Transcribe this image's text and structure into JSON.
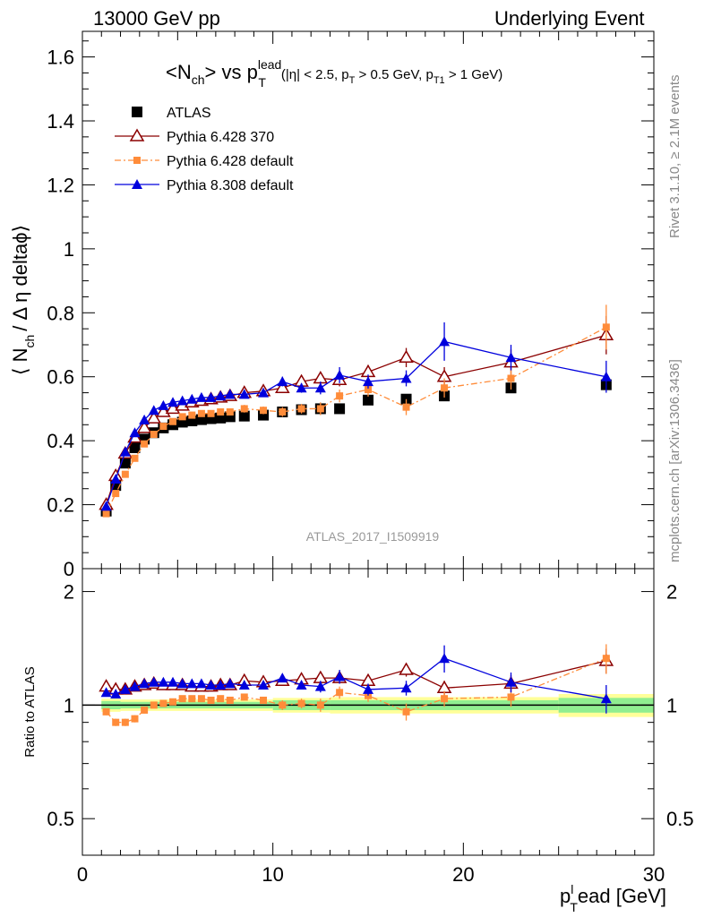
{
  "header": {
    "left": "13000 GeV pp",
    "right": "Underlying Event"
  },
  "side_text": {
    "rivet": "Rivet 3.1.10, ≥ 2.1M events",
    "mcplots": "mcplots.cern.ch [arXiv:1306.3436]"
  },
  "chart_data": [
    {
      "type": "scatter",
      "panel": "main",
      "title": "<N_ch> vs p_T^lead",
      "title_cuts": "(|η| < 2.5, p_T > 0.5 GeV, p_T1 > 1 GeV)",
      "ylabel": "⟨ N_ch / Δη deltaϕ ⟩",
      "watermark": "ATLAS_2017_I1509919",
      "xlim": [
        0,
        30
      ],
      "ylim": [
        0,
        1.68
      ],
      "y_ticks": [
        "0",
        "0.2",
        "0.4",
        "0.6",
        "0.8",
        "1",
        "1.2",
        "1.4",
        "1.6"
      ],
      "legend_position": "top-left",
      "series": [
        {
          "name": "ATLAS",
          "color": "#000000",
          "marker": "square",
          "x": [
            1.25,
            1.75,
            2.25,
            2.75,
            3.25,
            3.75,
            4.25,
            4.75,
            5.25,
            5.75,
            6.25,
            6.75,
            7.25,
            7.75,
            8.5,
            9.5,
            10.5,
            11.5,
            12.5,
            13.5,
            15,
            17,
            19,
            22.5,
            27.5
          ],
          "y": [
            0.18,
            0.26,
            0.33,
            0.378,
            0.405,
            0.425,
            0.44,
            0.45,
            0.458,
            0.462,
            0.466,
            0.469,
            0.471,
            0.475,
            0.477,
            0.48,
            0.49,
            0.497,
            0.5,
            0.5,
            0.527,
            0.53,
            0.54,
            0.565,
            0.575
          ]
        },
        {
          "name": "Pythia 6.428 370",
          "color": "#8b0000",
          "marker": "open-triangle",
          "x": [
            1.25,
            1.75,
            2.25,
            2.75,
            3.25,
            3.75,
            4.25,
            4.75,
            5.25,
            5.75,
            6.25,
            6.75,
            7.25,
            7.75,
            8.5,
            9.5,
            10.5,
            11.5,
            12.5,
            13.5,
            15,
            17,
            19,
            22.5,
            27.5
          ],
          "y": [
            0.2,
            0.29,
            0.36,
            0.41,
            0.44,
            0.47,
            0.49,
            0.5,
            0.51,
            0.52,
            0.525,
            0.53,
            0.535,
            0.54,
            0.55,
            0.555,
            0.565,
            0.585,
            0.595,
            0.59,
            0.615,
            0.66,
            0.6,
            0.645,
            0.73
          ],
          "err": [
            0.01,
            0.01,
            0.01,
            0.01,
            0.01,
            0.01,
            0.01,
            0.01,
            0.01,
            0.01,
            0.01,
            0.01,
            0.01,
            0.01,
            0.012,
            0.012,
            0.015,
            0.015,
            0.02,
            0.02,
            0.022,
            0.03,
            0.03,
            0.04,
            0.06
          ]
        },
        {
          "name": "Pythia 6.428 default",
          "color": "#ff8c3a",
          "marker": "filled-square",
          "dash": true,
          "x": [
            1.25,
            1.75,
            2.25,
            2.75,
            3.25,
            3.75,
            4.25,
            4.75,
            5.25,
            5.75,
            6.25,
            6.75,
            7.25,
            7.75,
            8.5,
            9.5,
            10.5,
            11.5,
            12.5,
            13.5,
            15,
            17,
            19,
            22.5,
            27.5
          ],
          "y": [
            0.172,
            0.235,
            0.295,
            0.345,
            0.39,
            0.42,
            0.445,
            0.46,
            0.475,
            0.48,
            0.485,
            0.485,
            0.49,
            0.49,
            0.5,
            0.495,
            0.49,
            0.5,
            0.5,
            0.54,
            0.56,
            0.505,
            0.565,
            0.595,
            0.755
          ],
          "err": [
            0.01,
            0.01,
            0.01,
            0.01,
            0.01,
            0.01,
            0.01,
            0.01,
            0.01,
            0.01,
            0.01,
            0.01,
            0.01,
            0.01,
            0.012,
            0.012,
            0.015,
            0.015,
            0.02,
            0.02,
            0.022,
            0.025,
            0.03,
            0.035,
            0.07
          ]
        },
        {
          "name": "Pythia 8.308 default",
          "color": "#0000dd",
          "marker": "filled-triangle",
          "x": [
            1.25,
            1.75,
            2.25,
            2.75,
            3.25,
            3.75,
            4.25,
            4.75,
            5.25,
            5.75,
            6.25,
            6.75,
            7.25,
            7.75,
            8.5,
            9.5,
            10.5,
            11.5,
            12.5,
            13.5,
            15,
            17,
            19,
            22.5,
            27.5
          ],
          "y": [
            0.195,
            0.28,
            0.365,
            0.425,
            0.465,
            0.495,
            0.51,
            0.52,
            0.525,
            0.53,
            0.535,
            0.535,
            0.54,
            0.545,
            0.545,
            0.55,
            0.585,
            0.565,
            0.565,
            0.605,
            0.585,
            0.595,
            0.71,
            0.66,
            0.6
          ],
          "err": [
            0.01,
            0.01,
            0.01,
            0.01,
            0.01,
            0.01,
            0.01,
            0.01,
            0.01,
            0.01,
            0.01,
            0.01,
            0.01,
            0.01,
            0.012,
            0.012,
            0.015,
            0.015,
            0.02,
            0.025,
            0.022,
            0.025,
            0.06,
            0.04,
            0.05
          ]
        }
      ]
    },
    {
      "type": "scatter",
      "panel": "ratio",
      "ylabel": "Ratio to ATLAS",
      "xlabel": "p_T^lead [GeV]",
      "xlim": [
        0,
        30
      ],
      "ylim": [
        0.4,
        2.3
      ],
      "log_y": true,
      "y_ticks": [
        "0.5",
        "1",
        "2"
      ],
      "x_ticks": [
        "0",
        "10",
        "20",
        "30"
      ],
      "band_colors": {
        "inner": "#90ee90",
        "outer": "#ffff99"
      },
      "series": [
        {
          "name": "Pythia 6.428 370",
          "color": "#8b0000",
          "x": [
            1.25,
            1.75,
            2.25,
            2.75,
            3.25,
            3.75,
            4.25,
            4.75,
            5.25,
            5.75,
            6.25,
            6.75,
            7.25,
            7.75,
            8.5,
            9.5,
            10.5,
            11.5,
            12.5,
            13.5,
            15,
            17,
            19,
            22.5,
            27.5
          ],
          "y": [
            1.12,
            1.1,
            1.1,
            1.12,
            1.13,
            1.14,
            1.13,
            1.13,
            1.13,
            1.12,
            1.12,
            1.12,
            1.13,
            1.13,
            1.16,
            1.15,
            1.16,
            1.17,
            1.18,
            1.18,
            1.16,
            1.24,
            1.11,
            1.14,
            1.31
          ],
          "err": [
            0.02,
            0.02,
            0.02,
            0.02,
            0.02,
            0.02,
            0.02,
            0.02,
            0.02,
            0.02,
            0.02,
            0.02,
            0.02,
            0.02,
            0.02,
            0.02,
            0.03,
            0.03,
            0.04,
            0.04,
            0.04,
            0.05,
            0.05,
            0.06,
            0.1
          ]
        },
        {
          "name": "Pythia 6.428 default",
          "color": "#ff8c3a",
          "x": [
            1.25,
            1.75,
            2.25,
            2.75,
            3.25,
            3.75,
            4.25,
            4.75,
            5.25,
            5.75,
            6.25,
            6.75,
            7.25,
            7.75,
            8.5,
            9.5,
            10.5,
            11.5,
            12.5,
            13.5,
            15,
            17,
            19,
            22.5,
            27.5
          ],
          "y": [
            0.96,
            0.9,
            0.9,
            0.92,
            0.97,
            1.0,
            1.01,
            1.02,
            1.04,
            1.04,
            1.04,
            1.03,
            1.04,
            1.03,
            1.05,
            1.03,
            1.0,
            1.01,
            1.0,
            1.08,
            1.06,
            0.96,
            1.04,
            1.05,
            1.33
          ],
          "err": [
            0.02,
            0.02,
            0.02,
            0.02,
            0.02,
            0.02,
            0.02,
            0.02,
            0.02,
            0.02,
            0.02,
            0.02,
            0.02,
            0.02,
            0.02,
            0.02,
            0.03,
            0.03,
            0.04,
            0.04,
            0.04,
            0.05,
            0.05,
            0.06,
            0.12
          ]
        },
        {
          "name": "Pythia 8.308 default",
          "color": "#0000dd",
          "x": [
            1.25,
            1.75,
            2.25,
            2.75,
            3.25,
            3.75,
            4.25,
            4.75,
            5.25,
            5.75,
            6.25,
            6.75,
            7.25,
            7.75,
            8.5,
            9.5,
            10.5,
            11.5,
            12.5,
            13.5,
            15,
            17,
            19,
            22.5,
            27.5
          ],
          "y": [
            1.08,
            1.07,
            1.1,
            1.12,
            1.14,
            1.15,
            1.15,
            1.15,
            1.14,
            1.14,
            1.14,
            1.13,
            1.13,
            1.14,
            1.13,
            1.13,
            1.18,
            1.13,
            1.12,
            1.19,
            1.1,
            1.11,
            1.33,
            1.15,
            1.04
          ],
          "err": [
            0.02,
            0.02,
            0.02,
            0.02,
            0.02,
            0.02,
            0.02,
            0.02,
            0.02,
            0.02,
            0.02,
            0.02,
            0.02,
            0.02,
            0.02,
            0.02,
            0.03,
            0.03,
            0.04,
            0.05,
            0.04,
            0.05,
            0.11,
            0.07,
            0.09
          ]
        }
      ]
    }
  ]
}
